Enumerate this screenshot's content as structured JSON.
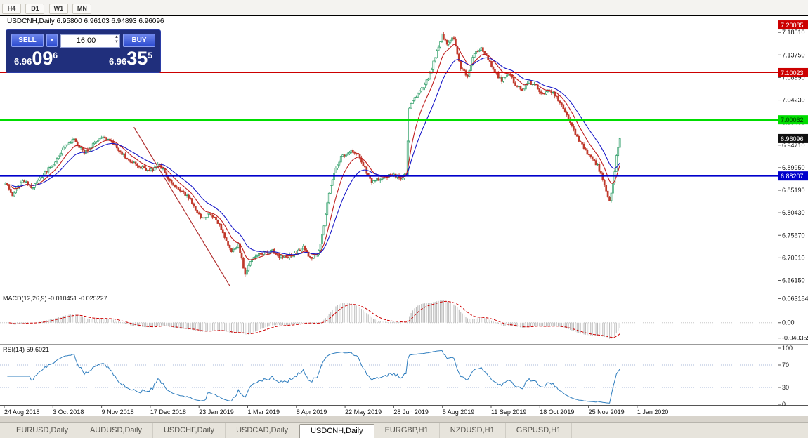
{
  "toolbar": {
    "periods": [
      "H4",
      "D1",
      "W1",
      "MN"
    ]
  },
  "chart": {
    "title_line": "USDCNH,Daily 6.95800 6.96103 6.94893 6.96096"
  },
  "icons": {
    "dropdown": "▼",
    "spin_up": "▲",
    "spin_down": "▼"
  },
  "trade_panel": {
    "sell_label": "SELL",
    "buy_label": "BUY",
    "volume": "16.00",
    "bid_small": "6.96",
    "bid_big": "09",
    "bid_sup": "6",
    "ask_small": "6.96",
    "ask_big": "35",
    "ask_sup": "5"
  },
  "tabs": {
    "items": [
      "EURUSD,Daily",
      "AUDUSD,Daily",
      "USDCHF,Daily",
      "USDCAD,Daily",
      "USDCNH,Daily",
      "EURGBP,H1",
      "NZDUSD,H1",
      "GBPUSD,H1"
    ],
    "active": "USDCNH,Daily"
  },
  "chart_data": {
    "type": "candlestick",
    "symbol": "USDCNH",
    "timeframe": "Daily",
    "ohlc": {
      "open": 6.958,
      "high": 6.96103,
      "low": 6.94893,
      "close": 6.96096
    },
    "num_candles": 360,
    "seed": 20200123,
    "volatility": 0.0035,
    "wick": 0.005,
    "final_close": 6.96096,
    "close_waypoints": [
      [
        0,
        6.87
      ],
      [
        4,
        6.843
      ],
      [
        10,
        6.872
      ],
      [
        16,
        6.858
      ],
      [
        22,
        6.885
      ],
      [
        28,
        6.908
      ],
      [
        34,
        6.942
      ],
      [
        40,
        6.96
      ],
      [
        46,
        6.93
      ],
      [
        52,
        6.952
      ],
      [
        58,
        6.965
      ],
      [
        64,
        6.945
      ],
      [
        70,
        6.922
      ],
      [
        78,
        6.902
      ],
      [
        84,
        6.892
      ],
      [
        90,
        6.906
      ],
      [
        96,
        6.872
      ],
      [
        102,
        6.852
      ],
      [
        108,
        6.832
      ],
      [
        114,
        6.792
      ],
      [
        120,
        6.802
      ],
      [
        126,
        6.772
      ],
      [
        132,
        6.722
      ],
      [
        136,
        6.738
      ],
      [
        140,
        6.672
      ],
      [
        144,
        6.708
      ],
      [
        150,
        6.718
      ],
      [
        156,
        6.724
      ],
      [
        162,
        6.708
      ],
      [
        168,
        6.716
      ],
      [
        174,
        6.73
      ],
      [
        178,
        6.708
      ],
      [
        183,
        6.722
      ],
      [
        186,
        6.778
      ],
      [
        189,
        6.845
      ],
      [
        192,
        6.89
      ],
      [
        196,
        6.922
      ],
      [
        202,
        6.936
      ],
      [
        206,
        6.928
      ],
      [
        210,
        6.898
      ],
      [
        214,
        6.868
      ],
      [
        220,
        6.878
      ],
      [
        226,
        6.884
      ],
      [
        232,
        6.878
      ],
      [
        234,
        6.886
      ],
      [
        236,
        7.028
      ],
      [
        240,
        7.052
      ],
      [
        244,
        7.07
      ],
      [
        248,
        7.096
      ],
      [
        251,
        7.135
      ],
      [
        255,
        7.18
      ],
      [
        258,
        7.162
      ],
      [
        262,
        7.174
      ],
      [
        266,
        7.11
      ],
      [
        270,
        7.092
      ],
      [
        274,
        7.142
      ],
      [
        278,
        7.154
      ],
      [
        282,
        7.13
      ],
      [
        286,
        7.1
      ],
      [
        290,
        7.084
      ],
      [
        294,
        7.1
      ],
      [
        298,
        7.074
      ],
      [
        302,
        7.064
      ],
      [
        306,
        7.08
      ],
      [
        310,
        7.072
      ],
      [
        314,
        7.054
      ],
      [
        318,
        7.064
      ],
      [
        322,
        7.05
      ],
      [
        326,
        7.024
      ],
      [
        330,
        6.996
      ],
      [
        334,
        6.964
      ],
      [
        338,
        6.94
      ],
      [
        342,
        6.92
      ],
      [
        346,
        6.904
      ],
      [
        350,
        6.866
      ],
      [
        352,
        6.838
      ],
      [
        353,
        6.83
      ],
      [
        355,
        6.864
      ],
      [
        357,
        6.922
      ],
      [
        359,
        6.961
      ]
    ],
    "candle_colors": {
      "up": "#2F9E68",
      "down": "#C0392B"
    },
    "moving_averages": [
      {
        "period": 10,
        "color": "#C02020"
      },
      {
        "period": 21,
        "color": "#1A1AC8"
      }
    ],
    "price_axis": {
      "min": 6.64,
      "max": 7.215,
      "ticks": [
        7.1851,
        7.1375,
        7.0899,
        7.0423,
        6.9947,
        6.9471,
        6.8995,
        6.8519,
        6.8043,
        6.7567,
        6.7091,
        6.6615
      ]
    },
    "hlines": [
      {
        "price": 7.20085,
        "color": "#CC0000",
        "width": 1,
        "text": "#FFFFFF"
      },
      {
        "price": 7.10023,
        "color": "#CC0000",
        "width": 1,
        "text": "#FFFFFF"
      },
      {
        "price": 7.00062,
        "color": "#00DD00",
        "width": 3,
        "text": "#003300"
      },
      {
        "price": 6.88207,
        "color": "#0000CC",
        "width": 2,
        "text": "#FFFFFF"
      }
    ],
    "current_price": {
      "price": 6.96096,
      "bg": "#101010",
      "text": "#FFFFFF"
    },
    "trendline": {
      "i1": 75,
      "p1": 6.985,
      "i2": 131,
      "p2": 6.65,
      "color": "#B03030"
    },
    "dates": [
      "24 Aug 2018",
      "3 Oct 2018",
      "9 Nov 2018",
      "17 Dec 2018",
      "23 Jan 2019",
      "1 Mar 2019",
      "8 Apr 2019",
      "22 May 2019",
      "28 Jun 2019",
      "5 Aug 2019",
      "11 Sep 2019",
      "18 Oct 2019",
      "25 Nov 2019",
      "1 Jan 2020"
    ],
    "macd": {
      "label": "MACD(12,26,9)",
      "values": "-0.010451 -0.025227",
      "fast": 12,
      "slow": 26,
      "signal": 9,
      "vmax": 0.075,
      "vmin": -0.052,
      "axis": [
        {
          "v": 0.063184,
          "label": "0.063184"
        },
        {
          "v": 0,
          "label": "0.00"
        },
        {
          "v": -0.040355,
          "label": "-0.040355"
        }
      ],
      "hist_color": "#B9B9B9",
      "signal_color": "#CC0000"
    },
    "rsi": {
      "label": "RSI(14)",
      "value": "59.6021",
      "period": 14,
      "axis": [
        {
          "v": 100,
          "label": "100"
        },
        {
          "v": 70,
          "label": "70"
        },
        {
          "v": 30,
          "label": "30"
        },
        {
          "v": 0,
          "label": "0"
        }
      ],
      "levels": [
        70,
        30
      ],
      "color": "#2E7DBE"
    }
  }
}
